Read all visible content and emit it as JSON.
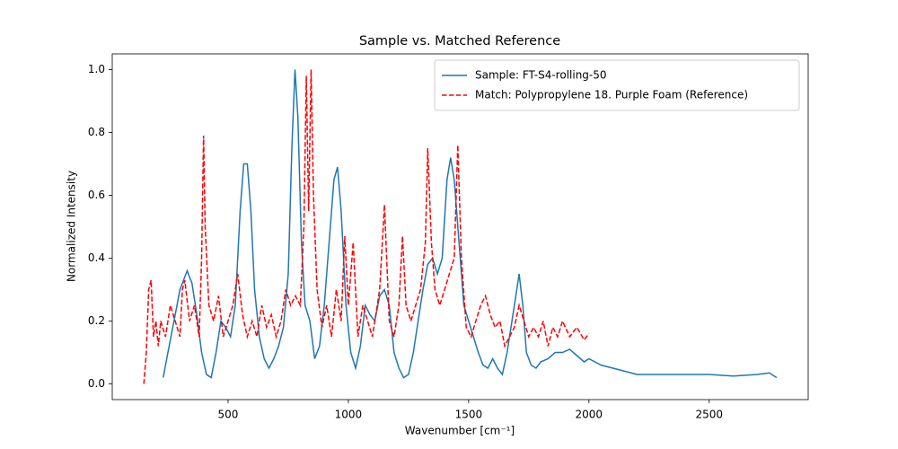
{
  "chart_data": {
    "type": "line",
    "title": "Sample vs. Matched Reference",
    "x_label": "Wavenumber [cm⁻¹]",
    "y_label": "Normalized Intensity",
    "xlim": [
      18.5,
      2911.5
    ],
    "ylim": [
      -0.05,
      1.05
    ],
    "xticks": [
      500,
      1000,
      1500,
      2000,
      2500
    ],
    "yticks": [
      {
        "value": 0,
        "label": "0.0"
      },
      0.2,
      0.4,
      0.6,
      0.8,
      {
        "value": 1,
        "label": "1.0"
      }
    ],
    "legend": "upper right",
    "series": [
      {
        "name": "Sample: FT-S4-rolling-50",
        "color": "#1f77b4",
        "style": "solid",
        "x": [
          230,
          250,
          280,
          300,
          330,
          350,
          370,
          390,
          410,
          430,
          450,
          470,
          490,
          510,
          530,
          550,
          565,
          580,
          595,
          610,
          630,
          650,
          670,
          690,
          710,
          730,
          750,
          765,
          778,
          790,
          805,
          820,
          840,
          860,
          880,
          900,
          920,
          940,
          955,
          970,
          990,
          1010,
          1030,
          1050,
          1070,
          1090,
          1110,
          1130,
          1150,
          1170,
          1190,
          1210,
          1230,
          1250,
          1270,
          1290,
          1310,
          1330,
          1350,
          1370,
          1390,
          1410,
          1425,
          1440,
          1460,
          1480,
          1500,
          1520,
          1540,
          1560,
          1580,
          1600,
          1620,
          1640,
          1660,
          1680,
          1700,
          1710,
          1725,
          1740,
          1760,
          1780,
          1800,
          1830,
          1860,
          1890,
          1920,
          1950,
          1980,
          2000,
          2050,
          2100,
          2150,
          2200,
          2300,
          2400,
          2500,
          2600,
          2700,
          2750,
          2780
        ],
        "values": [
          0.02,
          0.1,
          0.22,
          0.3,
          0.36,
          0.32,
          0.22,
          0.1,
          0.03,
          0.02,
          0.1,
          0.2,
          0.18,
          0.15,
          0.25,
          0.55,
          0.7,
          0.7,
          0.55,
          0.3,
          0.15,
          0.08,
          0.05,
          0.08,
          0.12,
          0.18,
          0.35,
          0.75,
          1.0,
          0.85,
          0.45,
          0.25,
          0.2,
          0.08,
          0.12,
          0.25,
          0.45,
          0.65,
          0.69,
          0.55,
          0.25,
          0.1,
          0.05,
          0.12,
          0.25,
          0.22,
          0.2,
          0.28,
          0.3,
          0.25,
          0.1,
          0.05,
          0.02,
          0.03,
          0.1,
          0.2,
          0.3,
          0.38,
          0.4,
          0.35,
          0.4,
          0.65,
          0.72,
          0.65,
          0.45,
          0.25,
          0.2,
          0.15,
          0.1,
          0.06,
          0.05,
          0.08,
          0.05,
          0.03,
          0.1,
          0.2,
          0.3,
          0.35,
          0.25,
          0.1,
          0.06,
          0.05,
          0.07,
          0.08,
          0.1,
          0.1,
          0.11,
          0.09,
          0.07,
          0.08,
          0.06,
          0.05,
          0.04,
          0.03,
          0.03,
          0.03,
          0.03,
          0.025,
          0.03,
          0.035,
          0.02
        ]
      },
      {
        "name": "Match: Polypropylene 18. Purple Foam (Reference)",
        "color": "#ff0000",
        "style": "dashed",
        "x": [
          150,
          160,
          170,
          180,
          190,
          200,
          210,
          220,
          240,
          260,
          280,
          300,
          310,
          320,
          340,
          360,
          380,
          390,
          398,
          405,
          420,
          440,
          460,
          480,
          500,
          520,
          540,
          560,
          580,
          600,
          620,
          640,
          660,
          680,
          700,
          720,
          740,
          760,
          780,
          800,
          815,
          825,
          835,
          845,
          855,
          870,
          890,
          910,
          930,
          950,
          970,
          985,
          1000,
          1020,
          1040,
          1060,
          1080,
          1100,
          1130,
          1150,
          1170,
          1190,
          1210,
          1225,
          1240,
          1260,
          1280,
          1300,
          1320,
          1330,
          1345,
          1360,
          1380,
          1400,
          1420,
          1440,
          1455,
          1470,
          1490,
          1510,
          1530,
          1550,
          1570,
          1590,
          1610,
          1630,
          1650,
          1670,
          1690,
          1710,
          1730,
          1750,
          1770,
          1790,
          1810,
          1830,
          1850,
          1870,
          1890,
          1920,
          1950,
          1980,
          2000
        ],
        "values": [
          0.0,
          0.1,
          0.3,
          0.33,
          0.15,
          0.2,
          0.12,
          0.2,
          0.15,
          0.25,
          0.2,
          0.15,
          0.3,
          0.33,
          0.2,
          0.25,
          0.15,
          0.4,
          0.79,
          0.5,
          0.25,
          0.2,
          0.28,
          0.15,
          0.2,
          0.25,
          0.35,
          0.22,
          0.15,
          0.2,
          0.15,
          0.25,
          0.18,
          0.22,
          0.15,
          0.2,
          0.3,
          0.25,
          0.28,
          0.25,
          0.5,
          0.98,
          0.55,
          1.0,
          0.6,
          0.3,
          0.18,
          0.25,
          0.15,
          0.3,
          0.2,
          0.47,
          0.25,
          0.45,
          0.15,
          0.25,
          0.2,
          0.15,
          0.3,
          0.57,
          0.2,
          0.15,
          0.25,
          0.47,
          0.25,
          0.2,
          0.25,
          0.3,
          0.45,
          0.75,
          0.45,
          0.3,
          0.25,
          0.3,
          0.35,
          0.4,
          0.76,
          0.4,
          0.18,
          0.15,
          0.2,
          0.25,
          0.28,
          0.22,
          0.18,
          0.2,
          0.12,
          0.15,
          0.18,
          0.25,
          0.2,
          0.15,
          0.18,
          0.15,
          0.2,
          0.12,
          0.18,
          0.15,
          0.2,
          0.15,
          0.18,
          0.14,
          0.16
        ]
      }
    ]
  }
}
